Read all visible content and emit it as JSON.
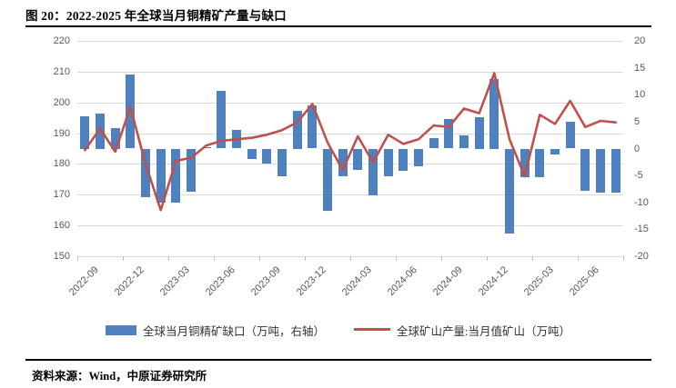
{
  "title": "图 20：2022-2025 年全球当月铜精矿产量与缺口",
  "source": "资料来源：Wind，中原证券研究所",
  "chart_data": {
    "type": "combo",
    "categories": [
      "2022-09",
      "2022-10",
      "2022-11",
      "2022-12",
      "2023-01",
      "2023-02",
      "2023-03",
      "2023-04",
      "2023-05",
      "2023-06",
      "2023-07",
      "2023-08",
      "2023-09",
      "2023-10",
      "2023-11",
      "2023-12",
      "2024-01",
      "2024-02",
      "2024-03",
      "2024-04",
      "2024-05",
      "2024-06",
      "2024-07",
      "2024-08",
      "2024-09",
      "2024-10",
      "2024-11",
      "2024-12",
      "2025-01",
      "2025-02",
      "2025-03",
      "2025-04",
      "2025-05",
      "2025-06",
      "2025-07",
      "2025-08"
    ],
    "x_tick_labels": [
      "2022-09",
      "2022-12",
      "2023-03",
      "2023-06",
      "2023-09",
      "2023-12",
      "2024-03",
      "2024-06",
      "2024-09",
      "2024-12",
      "2025-03",
      "2025-06"
    ],
    "series": [
      {
        "name": "全球当月铜精矿缺口（万吨，右轴）",
        "type": "bar",
        "axis": "right",
        "color": "#4e81bd",
        "values": [
          6,
          6.5,
          3.8,
          13.8,
          -9,
          -10,
          -10,
          -8,
          0.3,
          10.7,
          3.4,
          -2,
          -2.7,
          -5.1,
          7,
          8,
          -11.6,
          -5.2,
          -3.9,
          -8.7,
          -5.2,
          -4.1,
          -3.3,
          2,
          5.5,
          2.5,
          5.9,
          13,
          -15.8,
          -5.3,
          -5.3,
          -1.1,
          5,
          -7.8,
          -8.2,
          -8.2
        ]
      },
      {
        "name": "全球矿山产量:当月值矿山（万吨）",
        "type": "line",
        "axis": "left",
        "color": "#c0504d",
        "values": [
          184.5,
          191.5,
          184,
          198.5,
          180,
          165,
          181,
          182,
          186,
          187.5,
          188,
          188.5,
          189.5,
          191,
          193.5,
          199.5,
          187,
          178,
          189,
          180.5,
          189.5,
          186.5,
          188,
          192.5,
          192,
          198,
          196.5,
          209.5,
          188,
          176,
          196,
          193,
          200.5,
          192,
          194,
          193.5
        ]
      }
    ],
    "left_axis": {
      "min": 150,
      "max": 220,
      "step": 10,
      "ticks": [
        220,
        210,
        200,
        190,
        180,
        170,
        160,
        150
      ]
    },
    "right_axis": {
      "min": -20,
      "max": 20,
      "step": 5,
      "ticks": [
        20,
        15,
        10,
        5,
        0,
        -5,
        -10,
        -15,
        -20
      ]
    },
    "grid": true,
    "legend_position": "bottom",
    "grid_color": "#d9d9d9",
    "axis_text_color": "#595959"
  }
}
